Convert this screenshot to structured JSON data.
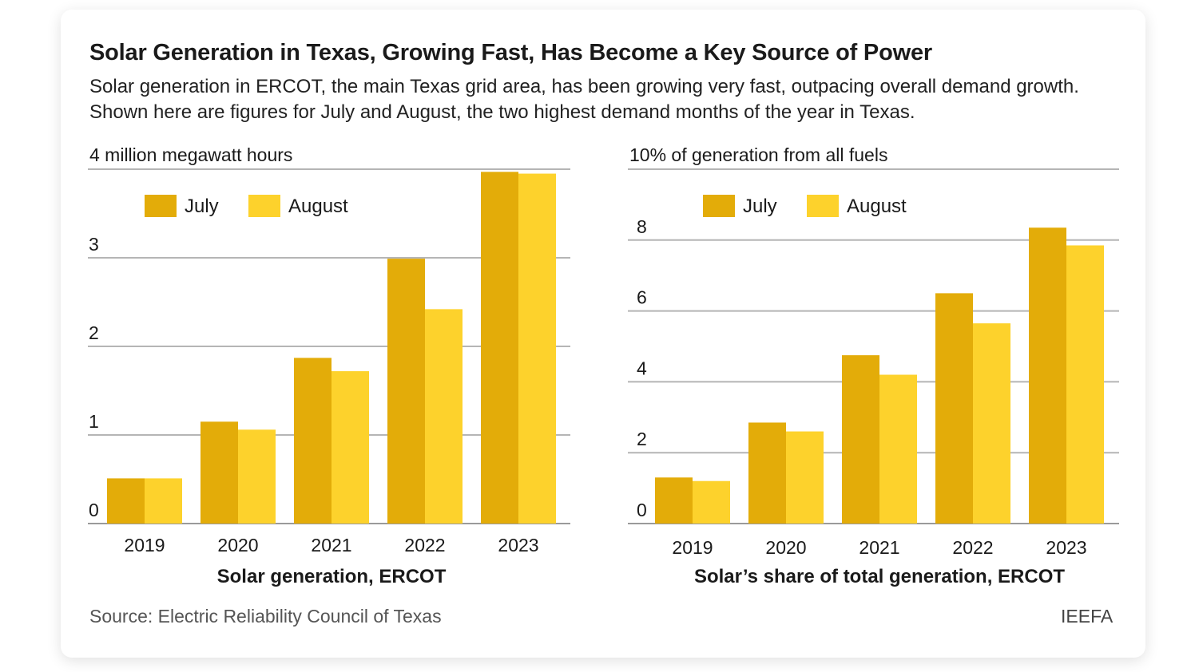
{
  "title": "Solar Generation in Texas, Growing Fast, Has Become a Key Source of Power",
  "subtitle": "Solar generation in ERCOT, the main Texas grid area, has been growing very fast, outpacing overall demand growth. Shown here are figures for July and August, the two highest demand months of the year in Texas.",
  "source": "Source: Electric Reliability Council of Texas",
  "brand": "IEEFA",
  "colors": {
    "july": "#E3AC09",
    "august": "#FDD22C",
    "grid": "#b5b5b5"
  },
  "chart_data": [
    {
      "type": "bar",
      "top_label": "4 million megawatt hours",
      "xlabel": "Solar generation, ERCOT",
      "categories": [
        "2019",
        "2020",
        "2021",
        "2022",
        "2023"
      ],
      "series": [
        {
          "name": "July",
          "values": [
            0.51,
            1.15,
            1.87,
            2.99,
            3.97
          ]
        },
        {
          "name": "August",
          "values": [
            0.51,
            1.06,
            1.72,
            2.42,
            3.95
          ]
        }
      ],
      "ylim": [
        0,
        4
      ],
      "ticks": [
        {
          "value": 0,
          "label": "0"
        },
        {
          "value": 1,
          "label": "1"
        },
        {
          "value": 2,
          "label": "2"
        },
        {
          "value": 3,
          "label": "3"
        },
        {
          "value": 4,
          "label": ""
        }
      ],
      "legend": "top-left"
    },
    {
      "type": "bar",
      "top_label": "10% of generation from all fuels",
      "xlabel": "Solar’s share of total generation, ERCOT",
      "categories": [
        "2019",
        "2020",
        "2021",
        "2022",
        "2023"
      ],
      "series": [
        {
          "name": "July",
          "values": [
            1.3,
            2.85,
            4.75,
            6.5,
            8.35
          ]
        },
        {
          "name": "August",
          "values": [
            1.2,
            2.6,
            4.2,
            5.65,
            7.85
          ]
        }
      ],
      "ylim": [
        0,
        10
      ],
      "ticks": [
        {
          "value": 0,
          "label": "0"
        },
        {
          "value": 2,
          "label": "2"
        },
        {
          "value": 4,
          "label": "4"
        },
        {
          "value": 6,
          "label": "6"
        },
        {
          "value": 8,
          "label": "8"
        },
        {
          "value": 10,
          "label": ""
        }
      ],
      "legend": "top-left"
    }
  ]
}
